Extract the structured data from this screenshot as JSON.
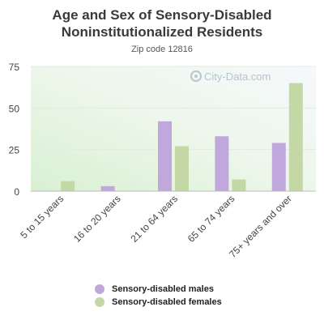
{
  "chart_data": {
    "type": "bar",
    "title": "Age and Sex of Sensory-Disabled Noninstitutionalized Residents",
    "subtitle": "Zip code 12816",
    "categories": [
      "5 to 15 years",
      "16 to 20 years",
      "21 to 64 years",
      "65 to 74 years",
      "75+ years and over"
    ],
    "series": [
      {
        "name": "Sensory-disabled males",
        "values": [
          0,
          3,
          42,
          33,
          29
        ],
        "color": "#c0a8dc"
      },
      {
        "name": "Sensory-disabled females",
        "values": [
          6,
          0,
          27,
          7,
          65
        ],
        "color": "#c4d8a6"
      }
    ],
    "ylim": [
      0,
      75
    ],
    "yticks": [
      0,
      25,
      50,
      75
    ],
    "grid": true,
    "legend_position": "bottom",
    "watermark": "City-Data.com"
  }
}
